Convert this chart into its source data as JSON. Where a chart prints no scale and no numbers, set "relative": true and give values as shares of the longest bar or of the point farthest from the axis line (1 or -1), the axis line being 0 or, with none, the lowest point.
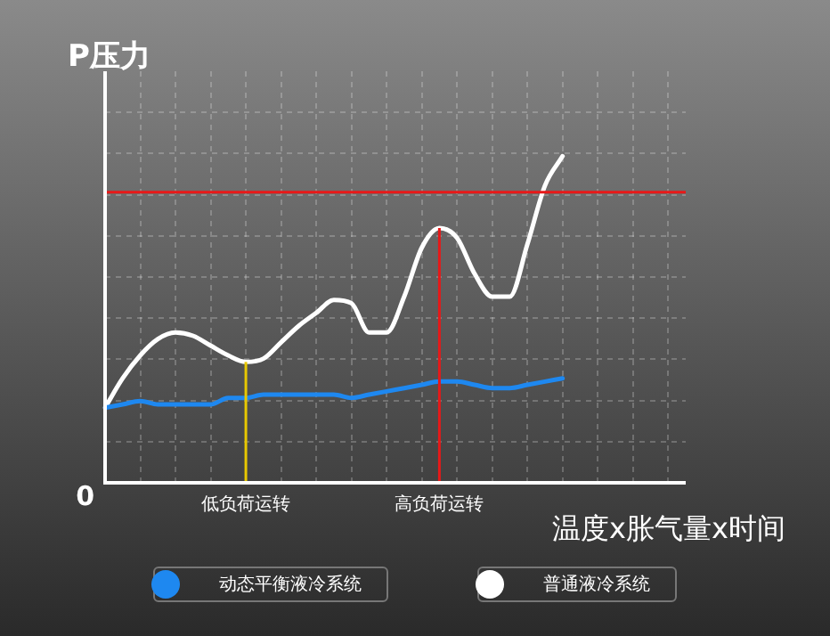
{
  "chart_data": {
    "type": "line",
    "ylabel": "P压力",
    "xlabel": "温度x胀气量x时间",
    "relative": true,
    "grid": true,
    "legend": "bottom",
    "marker": "none",
    "categories": [
      null,
      null,
      null,
      null,
      null,
      null,
      null,
      null,
      "低负荷运转",
      null,
      null,
      null,
      null,
      null,
      null,
      null,
      null,
      null,
      null,
      "高负荷运转",
      null,
      null,
      null,
      null,
      null,
      null,
      null,
      null,
      null,
      null,
      null,
      null,
      null,
      null
    ],
    "series": [
      {
        "name": "动态平衡液冷系统",
        "color": "#1e88f0",
        "values": [
          0.23,
          0.24,
          0.25,
          0.24,
          0.24,
          0.24,
          0.24,
          0.26,
          0.26,
          0.27,
          0.27,
          0.27,
          0.27,
          0.27,
          0.26,
          0.27,
          0.28,
          0.29,
          0.3,
          0.31,
          0.31,
          0.3,
          0.29,
          0.29,
          0.3,
          0.31,
          0.32,
          null,
          null,
          null,
          null,
          null,
          null,
          null
        ]
      },
      {
        "name": "普通液冷系统",
        "color": "#ffffff",
        "values": [
          0.23,
          0.32,
          0.39,
          0.44,
          0.46,
          0.45,
          0.42,
          0.39,
          0.37,
          0.38,
          0.43,
          0.48,
          0.52,
          0.56,
          0.55,
          0.46,
          0.46,
          0.57,
          0.72,
          0.78,
          0.75,
          0.64,
          0.57,
          0.57,
          0.73,
          0.91,
          1.0,
          null,
          null,
          null,
          null,
          null,
          null,
          null
        ]
      }
    ],
    "ref_lines": [
      {
        "axis": "y",
        "value": 0.89,
        "color": "#e81818"
      },
      {
        "axis": "x",
        "value": "低负荷运转",
        "color": "#e8c800"
      },
      {
        "axis": "x",
        "value": "高负荷运转",
        "color": "#e81818"
      }
    ],
    "annotations": [
      "0"
    ]
  }
}
